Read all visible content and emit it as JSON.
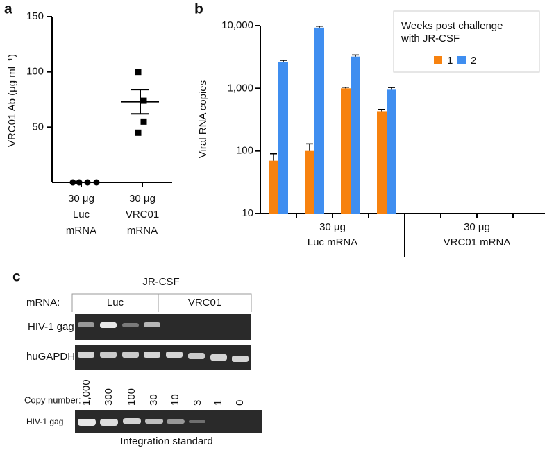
{
  "chart_data": [
    {
      "type": "dot",
      "panel": "a",
      "y_label": "VRC01 Ab (μg ml⁻¹)",
      "categories": [
        "30 μg\nLuc\nmRNA",
        "30 μg\nVRC01\nmRNA"
      ],
      "values": [
        [
          0,
          0,
          0,
          0
        ],
        [
          100,
          74,
          55,
          45
        ]
      ],
      "means": [
        null,
        73
      ],
      "errors": [
        null,
        11
      ],
      "color": "#000000",
      "ylim": [
        0,
        150
      ],
      "yticks": [
        50,
        100,
        150
      ]
    },
    {
      "type": "bar",
      "panel": "b",
      "y_label": "Viral RNA copies",
      "log": true,
      "categories": [
        null,
        null,
        null,
        null,
        null,
        null,
        null,
        null
      ],
      "groups": [
        "30 μg\nLuc mRNA",
        "30 μg\nVRC01 mRNA"
      ],
      "legend_title": "Weeks post challenge\nwith JR-CSF",
      "legend": "upper right",
      "series": [
        {
          "name": "1",
          "color": "#f7820f",
          "values": [
            70,
            100,
            1000,
            430,
            null,
            null,
            null,
            null
          ],
          "errors": [
            20,
            30,
            40,
            30,
            null,
            null,
            null,
            null
          ]
        },
        {
          "name": "2",
          "color": "#3f8ef0",
          "values": [
            2600,
            9300,
            3200,
            950,
            null,
            null,
            null,
            null
          ],
          "errors": [
            200,
            500,
            200,
            80,
            null,
            null,
            null,
            null
          ]
        }
      ],
      "ylim": [
        10,
        10000
      ],
      "yticks": [
        10,
        100,
        {
          "value": 1000,
          "label": "1,000"
        },
        {
          "value": 10000,
          "label": "10,000"
        }
      ]
    }
  ],
  "gel": {
    "panel": "c",
    "title": "JR-CSF",
    "mrna_label": "mRNA:",
    "groups": [
      "Luc",
      "VRC01"
    ],
    "rows": [
      "HIV-1 gag",
      "huGAPDH"
    ],
    "copy_label": "Copy number:",
    "copy_numbers": [
      "1,000",
      "300",
      "100",
      "30",
      "10",
      "3",
      "1",
      "0"
    ],
    "standard_row": "HIV-1 gag",
    "standard_caption": "Integration standard"
  }
}
